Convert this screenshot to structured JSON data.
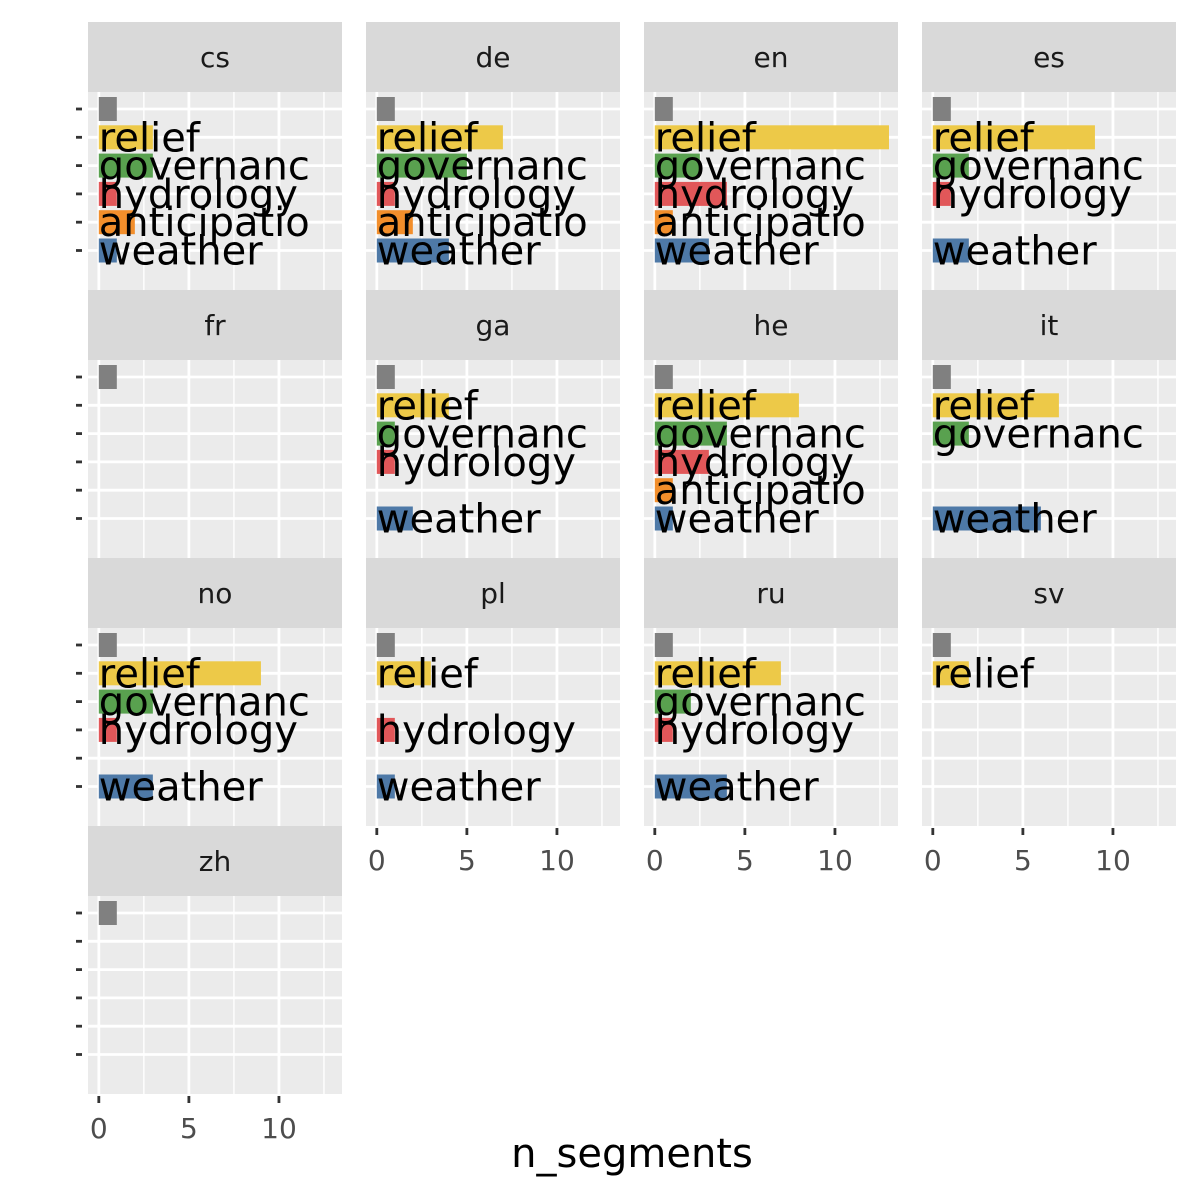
{
  "chart_data": {
    "type": "bar",
    "orientation": "horizontal",
    "facet_by": "language",
    "xlabel": "n_segments",
    "ylabel": "",
    "xlim": [
      0,
      13.5
    ],
    "x_ticks": [
      0,
      5,
      10
    ],
    "grid": true,
    "legend": "none",
    "categories": [
      "",
      "relief",
      "governanc",
      "hydrology",
      "anticipatio",
      "weather"
    ],
    "category_colors": [
      "#808080",
      "#EDC948",
      "#59A14F",
      "#E15759",
      "#F28E2B",
      "#4E79A7"
    ],
    "facets": [
      {
        "name": "cs",
        "values": [
          1,
          3,
          3,
          1,
          2,
          1
        ],
        "labels": [
          "",
          "relief",
          "governanc",
          "hydrology",
          "anticipatio",
          "weather"
        ]
      },
      {
        "name": "de",
        "values": [
          1,
          7,
          5,
          1,
          2,
          4
        ],
        "labels": [
          "",
          "relief",
          "governanc",
          "hydrology",
          "anticipatio",
          "weather"
        ]
      },
      {
        "name": "en",
        "values": [
          1,
          13,
          2.5,
          4,
          1,
          3
        ],
        "labels": [
          "",
          "relief",
          "governanc",
          "hydrology",
          "anticipatio",
          "weather"
        ]
      },
      {
        "name": "es",
        "values": [
          1,
          9,
          2,
          1,
          0,
          2
        ],
        "labels": [
          "",
          "relief",
          "governanc",
          "hydrology",
          "",
          "weather"
        ]
      },
      {
        "name": "fr",
        "values": [
          1,
          0,
          0,
          0,
          0,
          0
        ],
        "labels": [
          "",
          "",
          "",
          "",
          "",
          ""
        ]
      },
      {
        "name": "ga",
        "values": [
          1,
          4,
          1,
          1,
          0,
          2
        ],
        "labels": [
          "",
          "relief",
          "governanc",
          "hydrology",
          "",
          "weather"
        ]
      },
      {
        "name": "he",
        "values": [
          1,
          8,
          4,
          3,
          1,
          1
        ],
        "labels": [
          "",
          "relief",
          "governanc",
          "hydrology",
          "anticipatio",
          "weather"
        ]
      },
      {
        "name": "it",
        "values": [
          1,
          7,
          2,
          0,
          0,
          6
        ],
        "labels": [
          "",
          "relief",
          "governanc",
          "",
          "",
          "weather"
        ]
      },
      {
        "name": "no",
        "values": [
          1,
          9,
          3,
          1,
          0,
          3
        ],
        "labels": [
          "",
          "relief",
          "governanc",
          "hydrology",
          "",
          "weather"
        ]
      },
      {
        "name": "pl",
        "values": [
          1,
          3,
          0,
          1,
          0,
          1
        ],
        "labels": [
          "",
          "relief",
          "",
          "hydrology",
          "",
          "weather"
        ]
      },
      {
        "name": "ru",
        "values": [
          1,
          7,
          2,
          1,
          0,
          4
        ],
        "labels": [
          "",
          "relief",
          "governanc",
          "hydrology",
          "",
          "weather"
        ]
      },
      {
        "name": "sv",
        "values": [
          1,
          2,
          0,
          0,
          0,
          0
        ],
        "labels": [
          "",
          "relief",
          "",
          "",
          "",
          ""
        ]
      },
      {
        "name": "zh",
        "values": [
          1,
          0,
          0,
          0,
          0,
          0
        ],
        "labels": [
          "",
          "",
          "",
          "",
          "",
          ""
        ]
      }
    ]
  }
}
